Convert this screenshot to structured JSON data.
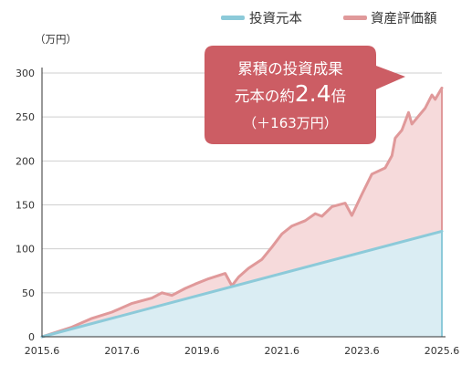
{
  "chart_data": {
    "type": "area",
    "unit_label": "（万円）",
    "x_ticks": [
      "2015.6",
      "2017.6",
      "2019.6",
      "2021.6",
      "2023.6",
      "2025.6"
    ],
    "y_ticks": [
      0,
      50,
      100,
      150,
      200,
      250,
      300
    ],
    "ylim": [
      0,
      300
    ],
    "xlim": [
      "2015.6",
      "2025.6"
    ],
    "grid": "horizontal",
    "legend_position": "top-right",
    "series": [
      {
        "name": "投資元本",
        "color": "#8ccad9",
        "fill": "#daedf3",
        "x": [
          "2015.6",
          "2025.6"
        ],
        "values": [
          0,
          120
        ]
      },
      {
        "name": "資産評価額",
        "color": "#e0999a",
        "fill": "#f6dadb",
        "x": [
          "2015.6",
          "2016.3",
          "2016.9",
          "2017.3",
          "2017.9",
          "2018.3",
          "2018.6",
          "2018.9",
          "2019.1",
          "2019.4",
          "2019.8",
          "2020.1",
          "2020.3",
          "2020.5",
          "2020.8",
          "2021.0",
          "2021.3",
          "2021.6",
          "2021.9",
          "2022.1",
          "2022.4",
          "2022.6",
          "2022.9",
          "2023.1",
          "2023.3",
          "2023.6",
          "2023.9",
          "2024.1",
          "2024.3",
          "2024.4",
          "2024.6",
          "2024.8",
          "2024.9",
          "2025.1",
          "2025.3",
          "2025.4",
          "2025.6"
        ],
        "values": [
          0,
          11,
          21,
          28,
          38,
          44,
          50,
          47,
          55,
          60,
          66,
          72,
          58,
          68,
          78,
          88,
          102,
          117,
          126,
          132,
          140,
          137,
          148,
          152,
          138,
          162,
          185,
          192,
          206,
          226,
          235,
          255,
          242,
          260,
          275,
          270,
          283
        ]
      }
    ],
    "callout": {
      "line1": "累積の投資成果",
      "line2_prefix": "元本の約",
      "line2_value": "2.4",
      "line2_suffix": "倍",
      "line3": "（＋163万円）",
      "color": "#cc5d64"
    }
  }
}
